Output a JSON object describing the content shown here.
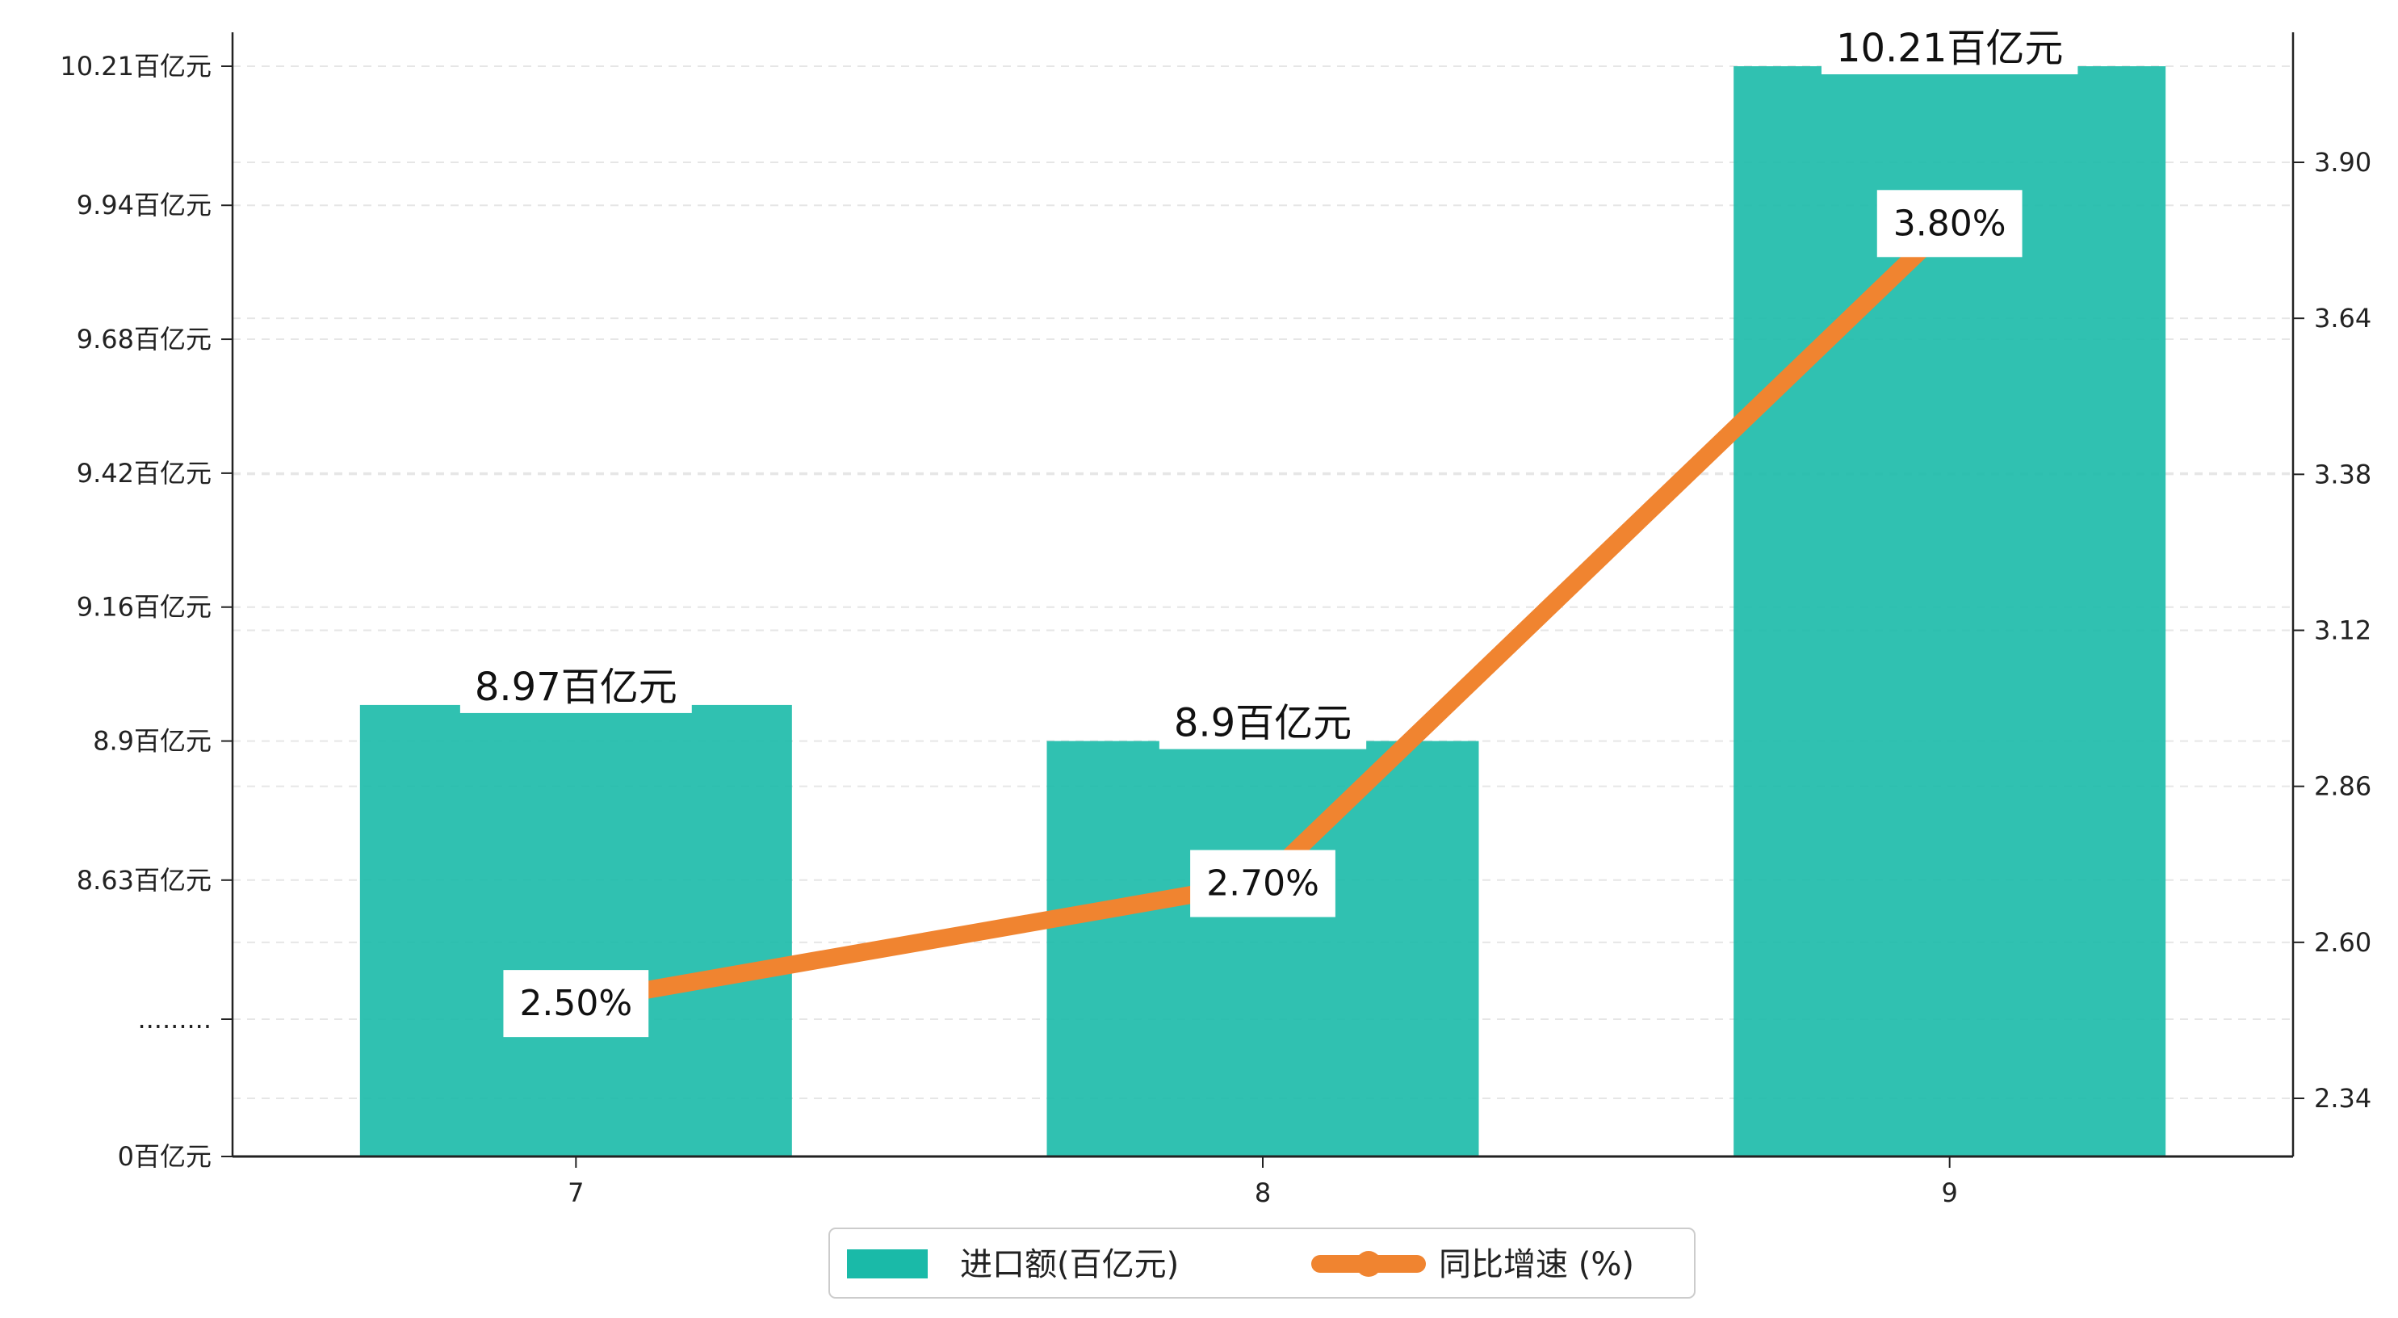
{
  "chart_data": {
    "type": "bar",
    "categories": [
      "7",
      "8",
      "9"
    ],
    "series": [
      {
        "name": "进口额(百亿元)",
        "kind": "bar",
        "axis": "left",
        "color": "#1ABAA8",
        "values": [
          8.97,
          8.9,
          10.21
        ],
        "labels": [
          "8.97百亿元",
          "8.9百亿元",
          "10.21百亿元"
        ]
      },
      {
        "name": "同比增速 (%)",
        "kind": "line",
        "axis": "right",
        "color": "#F08430",
        "values": [
          2.5,
          2.7,
          3.8
        ],
        "labels": [
          "2.50%",
          "2.70%",
          "3.80%"
        ]
      }
    ],
    "left_axis": {
      "ticks": [
        {
          "value": 0,
          "label": "0百亿元"
        },
        {
          "value": null,
          "label": "........."
        },
        {
          "value": 8.63,
          "label": "8.63百亿元"
        },
        {
          "value": 8.9,
          "label": "8.9百亿元"
        },
        {
          "value": 9.16,
          "label": "9.16百亿元"
        },
        {
          "value": 9.42,
          "label": "9.42百亿元"
        },
        {
          "value": 9.68,
          "label": "9.68百亿元"
        },
        {
          "value": 9.94,
          "label": "9.94百亿元"
        },
        {
          "value": 10.21,
          "label": "10.21百亿元"
        }
      ],
      "broken": true
    },
    "right_axis": {
      "ticks": [
        2.34,
        2.6,
        2.86,
        3.12,
        3.38,
        3.64,
        3.9
      ],
      "tick_labels": [
        "2.34",
        "2.60",
        "2.86",
        "3.12",
        "3.38",
        "3.64",
        "3.90"
      ],
      "ylim": [
        2.2,
        4.2
      ]
    },
    "grid": true,
    "legend": "bottom-center"
  }
}
